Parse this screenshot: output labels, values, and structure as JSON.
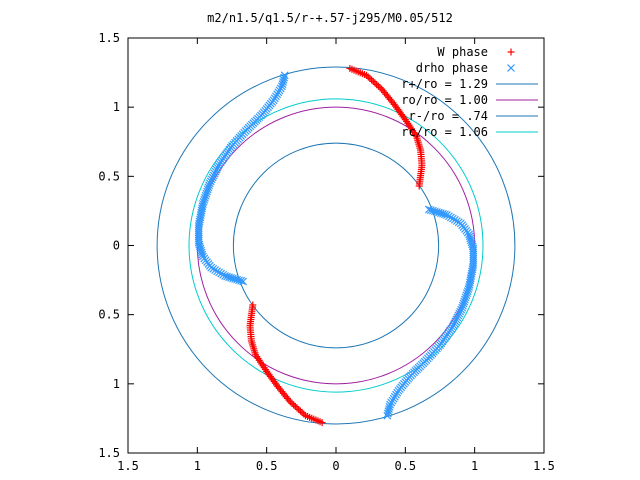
{
  "chart_data": {
    "type": "scatter",
    "title": "m2/n1.5/q1.5/r-+.57-j295/M0.05/512",
    "xlim": [
      -1.5,
      1.5
    ],
    "ylim": [
      -1.5,
      1.5
    ],
    "x_tick_values": [
      -1.5,
      -1,
      -0.5,
      0,
      0.5,
      1,
      1.5
    ],
    "x_tick_labels": [
      "1.5",
      "1",
      "0.5",
      "0",
      "0.5",
      "1",
      "1.5"
    ],
    "y_tick_values": [
      1.5,
      1,
      0.5,
      0,
      -0.5,
      -1,
      -1.5
    ],
    "y_tick_labels": [
      "1.5",
      "1",
      "0.5",
      "0",
      "0.5",
      "1",
      "1.5"
    ],
    "legend_position": "top-right",
    "circles": [
      {
        "name": "r+/ro = 1.29",
        "radius": 1.29,
        "color": "#1f77b4"
      },
      {
        "name": "ro/ro = 1.00",
        "radius": 1.0,
        "color": "#a020a0"
      },
      {
        "name": "r-/ro = .74",
        "radius": 0.74,
        "color": "#1f77b4"
      },
      {
        "name": "rc/ro = 1.06",
        "radius": 1.06,
        "color": "#00cccc"
      }
    ],
    "series": [
      {
        "name": "W phase",
        "marker": "+",
        "color": "#ff0000",
        "arms": [
          [
            [
              0.1,
              1.28
            ],
            [
              0.22,
              1.23
            ],
            [
              0.33,
              1.13
            ],
            [
              0.42,
              1.02
            ],
            [
              0.5,
              0.91
            ],
            [
              0.58,
              0.79
            ],
            [
              0.61,
              0.69
            ],
            [
              0.62,
              0.58
            ],
            [
              0.6,
              0.43
            ]
          ],
          [
            [
              -0.1,
              -1.28
            ],
            [
              -0.22,
              -1.23
            ],
            [
              -0.33,
              -1.13
            ],
            [
              -0.42,
              -1.02
            ],
            [
              -0.5,
              -0.91
            ],
            [
              -0.58,
              -0.79
            ],
            [
              -0.61,
              -0.69
            ],
            [
              -0.62,
              -0.58
            ],
            [
              -0.6,
              -0.43
            ]
          ]
        ]
      },
      {
        "name": "drho phase",
        "marker": "x",
        "color": "#3399ff",
        "arms": [
          [
            [
              0.67,
              0.26
            ],
            [
              0.8,
              0.22
            ],
            [
              0.9,
              0.16
            ],
            [
              0.96,
              0.08
            ],
            [
              0.99,
              -0.02
            ],
            [
              0.99,
              -0.14
            ],
            [
              0.96,
              -0.3
            ],
            [
              0.91,
              -0.45
            ],
            [
              0.84,
              -0.59
            ],
            [
              0.75,
              -0.72
            ],
            [
              0.64,
              -0.84
            ],
            [
              0.53,
              -0.95
            ],
            [
              0.45,
              -1.05
            ],
            [
              0.39,
              -1.15
            ],
            [
              0.37,
              -1.23
            ]
          ],
          [
            [
              -0.67,
              -0.26
            ],
            [
              -0.8,
              -0.22
            ],
            [
              -0.9,
              -0.16
            ],
            [
              -0.96,
              -0.08
            ],
            [
              -0.99,
              0.02
            ],
            [
              -0.99,
              0.14
            ],
            [
              -0.96,
              0.3
            ],
            [
              -0.91,
              0.45
            ],
            [
              -0.84,
              0.59
            ],
            [
              -0.75,
              0.72
            ],
            [
              -0.64,
              0.84
            ],
            [
              -0.53,
              0.95
            ],
            [
              -0.45,
              1.05
            ],
            [
              -0.39,
              1.15
            ],
            [
              -0.37,
              1.23
            ]
          ]
        ]
      }
    ]
  }
}
